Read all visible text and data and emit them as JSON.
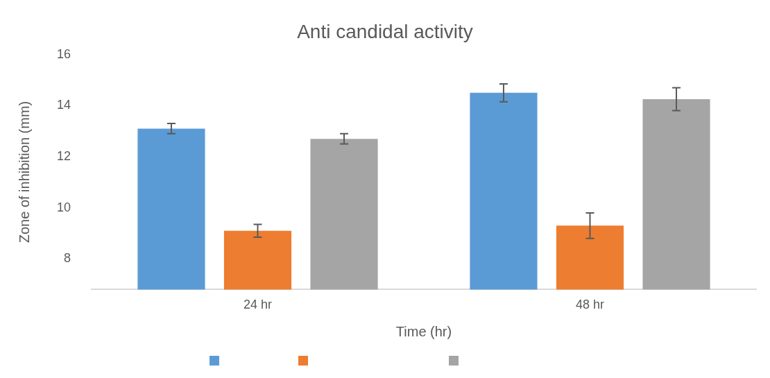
{
  "chart_data": {
    "type": "bar",
    "title": "Anti candidal activity",
    "xlabel": "Time (hr)",
    "ylabel": "Zone of inhibition (mm)",
    "categories": [
      "24 hr",
      "48 hr"
    ],
    "series": [
      {
        "color": "#5b9bd5",
        "values": [
          13.1,
          14.5
        ],
        "errors": [
          0.2,
          0.35
        ]
      },
      {
        "color": "#ed7d31",
        "values": [
          9.1,
          9.3
        ],
        "errors": [
          0.25,
          0.5
        ]
      },
      {
        "color": "#a5a5a5",
        "values": [
          12.7,
          14.25
        ],
        "errors": [
          0.2,
          0.45
        ]
      }
    ],
    "ylim": [
      6.8,
      16
    ],
    "yticks": [
      8,
      10,
      12,
      14,
      16
    ],
    "grid": false
  }
}
